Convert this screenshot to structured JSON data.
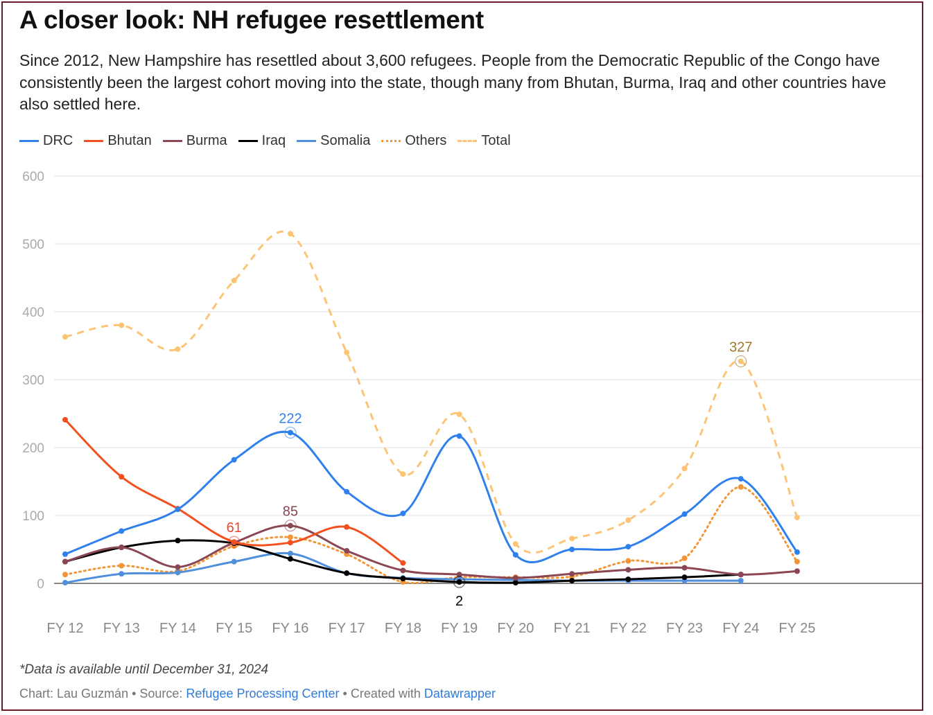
{
  "title": "A closer look: NH refugee resettlement",
  "description": "Since 2012, New Hampshire has resettled about 3,600 refugees. People from the Democratic Republic of the Congo have consistently been the largest cohort moving into the state, though many from Bhutan, Burma, Iraq and other countries have also settled here.",
  "note": "*Data is available until December 31, 2024",
  "credit": {
    "chart_by": "Chart: Lau Guzmán",
    "sep1": " • Source: ",
    "source": "Refugee Processing Center",
    "sep2": " • Created with ",
    "tool": "Datawrapper"
  },
  "chart_data": {
    "type": "line",
    "title": "A closer look: NH refugee resettlement",
    "xlabel": "",
    "ylabel": "",
    "ylim": [
      0,
      600
    ],
    "yticks": [
      0,
      100,
      200,
      300,
      400,
      500,
      600
    ],
    "grid": true,
    "legend_position": "top-left",
    "categories": [
      "FY 12",
      "FY 13",
      "FY 14",
      "FY 15",
      "FY 16",
      "FY 17",
      "FY 18",
      "FY 19",
      "FY 20",
      "FY 21",
      "FY 22",
      "FY 23",
      "FY 24",
      "FY 25"
    ],
    "series": [
      {
        "name": "Total",
        "color": "#fcc474",
        "style": "dashed",
        "values": [
          363,
          380,
          345,
          446,
          515,
          340,
          161,
          249,
          58,
          66,
          93,
          169,
          327,
          97
        ]
      },
      {
        "name": "Others",
        "color": "#f39534",
        "style": "dotted",
        "values": [
          13,
          26,
          18,
          55,
          68,
          43,
          2,
          9,
          9,
          10,
          33,
          37,
          142,
          32
        ]
      },
      {
        "name": "Somalia",
        "color": "#4f8fdc",
        "style": "solid",
        "values": [
          1,
          14,
          16,
          32,
          44,
          15,
          8,
          6,
          5,
          4,
          4,
          4,
          4,
          null
        ]
      },
      {
        "name": "Iraq",
        "color": "#000000",
        "style": "solid",
        "values": [
          32,
          53,
          63,
          59,
          36,
          15,
          7,
          2,
          1,
          4,
          6,
          9,
          13,
          null
        ]
      },
      {
        "name": "Burma",
        "color": "#8a4652",
        "style": "solid",
        "values": [
          32,
          53,
          24,
          60,
          85,
          48,
          19,
          13,
          8,
          14,
          20,
          23,
          13,
          18
        ]
      },
      {
        "name": "Bhutan",
        "color": "#f2511f",
        "style": "solid",
        "values": [
          241,
          157,
          110,
          61,
          60,
          83,
          30,
          null,
          null,
          null,
          null,
          null,
          null,
          null
        ]
      },
      {
        "name": "DRC",
        "color": "#2f80ed",
        "style": "solid",
        "values": [
          43,
          77,
          109,
          182,
          222,
          135,
          103,
          217,
          42,
          50,
          54,
          102,
          154,
          46
        ]
      }
    ],
    "legend_order": [
      "DRC",
      "Bhutan",
      "Burma",
      "Iraq",
      "Somalia",
      "Others",
      "Total"
    ],
    "annotations": [
      {
        "series": "DRC",
        "category": "FY 16",
        "text": "222",
        "color": "#2f80ed",
        "pos": "above"
      },
      {
        "series": "Bhutan",
        "category": "FY 15",
        "text": "61",
        "color": "#e8452c",
        "pos": "above"
      },
      {
        "series": "Burma",
        "category": "FY 16",
        "text": "85",
        "color": "#8a4652",
        "pos": "above"
      },
      {
        "series": "Iraq",
        "category": "FY 19",
        "text": "2",
        "color": "#000000",
        "pos": "below"
      },
      {
        "series": "Total",
        "category": "FY 24",
        "text": "327",
        "color": "#a0782a",
        "pos": "above"
      }
    ]
  }
}
